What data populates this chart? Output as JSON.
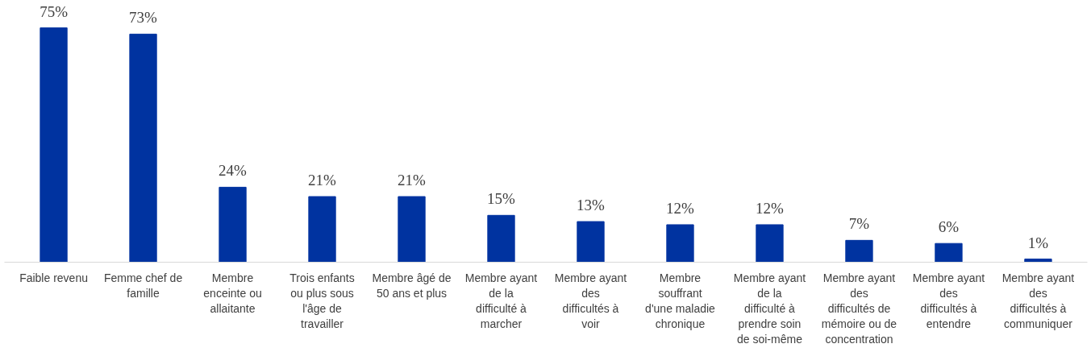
{
  "chart_data": {
    "type": "bar",
    "categories": [
      "Faible revenu",
      "Femme chef de famille",
      "Membre enceinte ou allaitante",
      "Trois enfants ou plus sous l'âge de travailler",
      "Membre âgé de 50 ans et plus",
      "Membre ayant de la difficulté à marcher",
      "Membre ayant des difficultés à voir",
      "Membre souffrant d'une maladie chronique",
      "Membre ayant de la difficulté à prendre soin de soi-même",
      "Membre ayant des difficultés de mémoire ou de concentration",
      "Membre ayant des difficultés à entendre",
      "Membre ayant des difficultés à communiquer"
    ],
    "values": [
      75,
      73,
      24,
      21,
      21,
      15,
      13,
      12,
      12,
      7,
      6,
      1
    ],
    "value_labels": [
      "75%",
      "73%",
      "24%",
      "21%",
      "21%",
      "15%",
      "13%",
      "12%",
      "12%",
      "7%",
      "6%",
      "1%"
    ],
    "color": "#0033a0",
    "grid": false
  }
}
